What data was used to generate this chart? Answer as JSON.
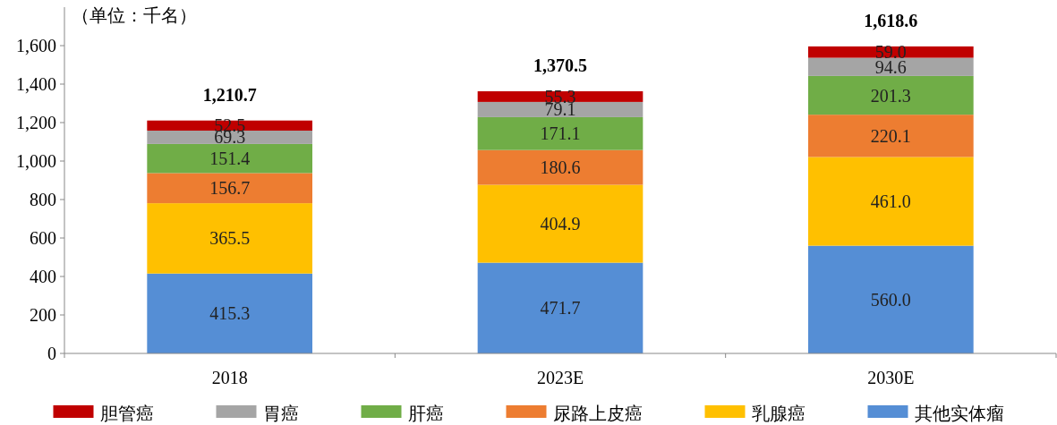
{
  "chart_data": {
    "type": "bar",
    "stacked": true,
    "ylabel": "（单位：千名）",
    "categories": [
      "2018",
      "2023E",
      "2030E"
    ],
    "ylim": [
      0,
      1800
    ],
    "yticks": [
      {
        "value": 0,
        "label": "0"
      },
      {
        "value": 200,
        "label": "200"
      },
      {
        "value": 400,
        "label": "400"
      },
      {
        "value": 600,
        "label": "600"
      },
      {
        "value": 800,
        "label": "800"
      },
      {
        "value": 1000,
        "label": "1,000"
      },
      {
        "value": 1200,
        "label": "1,200"
      },
      {
        "value": 1400,
        "label": "1,400"
      },
      {
        "value": 1600,
        "label": "1,600"
      }
    ],
    "legend": "bottom",
    "grid": false,
    "series": [
      {
        "name": "其他实体瘤",
        "color": "#558ed5",
        "values": [
          415.3,
          471.7,
          560.0
        ],
        "value_labels": [
          "415.3",
          "471.7",
          "560.0"
        ]
      },
      {
        "name": "乳腺癌",
        "color": "#ffc000",
        "values": [
          365.5,
          404.9,
          461.0
        ],
        "value_labels": [
          "365.5",
          "404.9",
          "461.0"
        ]
      },
      {
        "name": "尿路上皮癌",
        "color": "#ed7d31",
        "values": [
          156.7,
          180.6,
          220.1
        ],
        "value_labels": [
          "156.7",
          "180.6",
          "220.1"
        ]
      },
      {
        "name": "肝癌",
        "color": "#70ad47",
        "values": [
          151.4,
          171.1,
          201.3
        ],
        "value_labels": [
          "151.4",
          "171.1",
          "201.3"
        ]
      },
      {
        "name": "胃癌",
        "color": "#a5a5a5",
        "values": [
          69.3,
          79.1,
          94.6
        ],
        "value_labels": [
          "69.3",
          "79.1",
          "94.6"
        ]
      },
      {
        "name": "胆管癌",
        "color": "#c00000",
        "values": [
          52.5,
          55.3,
          59.0
        ],
        "value_labels": [
          "52.5",
          "55.3",
          "59.0"
        ]
      }
    ],
    "annotations": [
      {
        "text": "1,210.7",
        "x": "2018",
        "y": 1210.7
      },
      {
        "text": "1,370.5",
        "x": "2023E",
        "y": 1362.7
      },
      {
        "text": "1,618.6",
        "x": "2030E",
        "y": 1596.0
      }
    ]
  }
}
